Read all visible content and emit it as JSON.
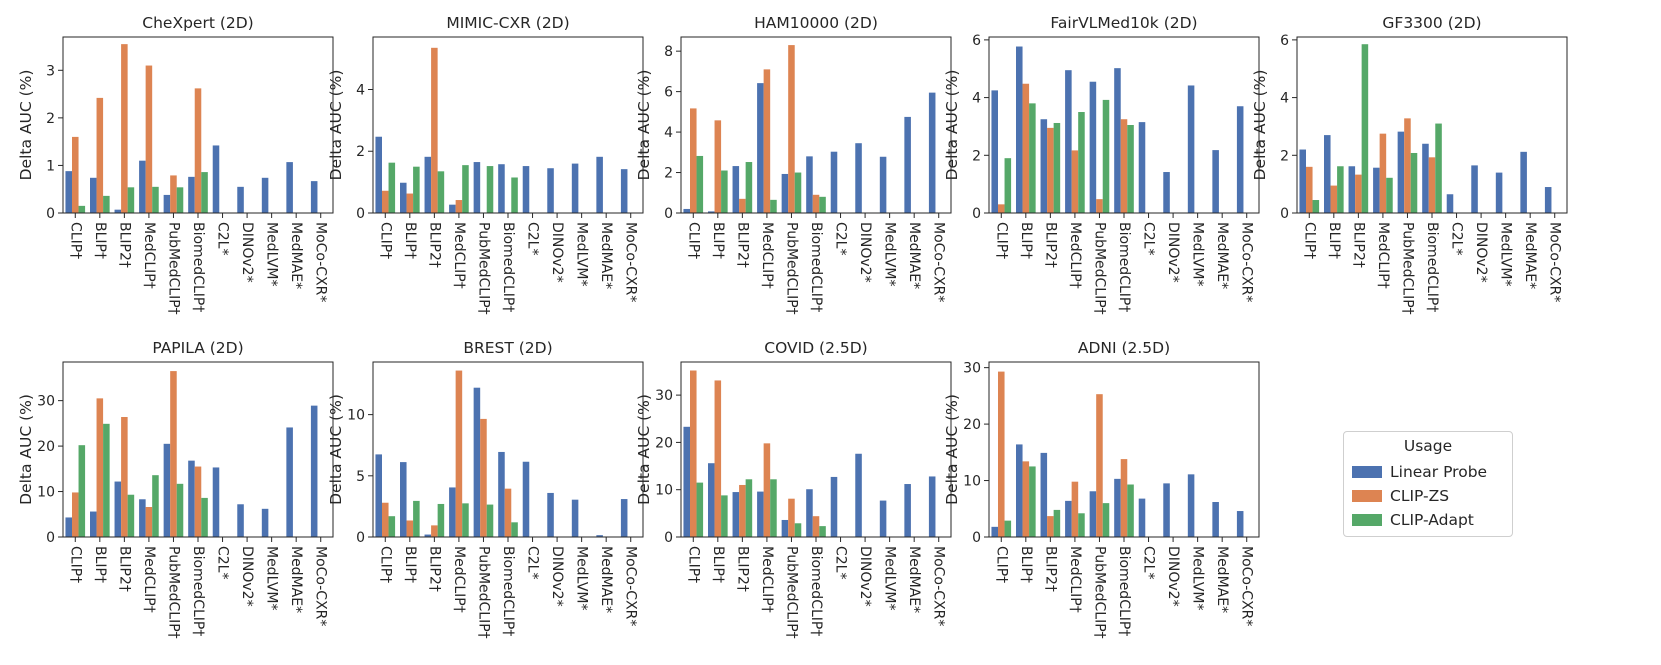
{
  "chart_data": {
    "type": "bar",
    "legend": {
      "title": "Usage",
      "position": "right",
      "series": [
        {
          "name": "Linear Probe",
          "color": "#4c72b0"
        },
        {
          "name": "CLIP-ZS",
          "color": "#dd8452"
        },
        {
          "name": "CLIP-Adapt",
          "color": "#55a868"
        }
      ]
    },
    "categories": [
      "CLIP†",
      "BLIP†",
      "BLIP2†",
      "MedCLIP†",
      "PubMedCLIP†",
      "BiomedCLIP†",
      "C2L*",
      "DINOv2*",
      "MedLVM*",
      "MedMAE*",
      "MoCo-CXR*"
    ],
    "ylabel": "Delta AUC (%)",
    "panels": [
      {
        "title": "CheXpert (2D)",
        "ylim": [
          0,
          3.7
        ],
        "yticks": [
          0,
          1,
          2,
          3
        ],
        "series": [
          {
            "name": "Linear Probe",
            "values": [
              0.88,
              0.74,
              0.07,
              1.1,
              0.38,
              0.76,
              1.42,
              0.55,
              0.74,
              1.07,
              0.67
            ]
          },
          {
            "name": "CLIP-ZS",
            "values": [
              1.6,
              2.42,
              3.55,
              3.1,
              0.79,
              2.62,
              null,
              null,
              null,
              null,
              null
            ]
          },
          {
            "name": "CLIP-Adapt",
            "values": [
              0.15,
              0.36,
              0.54,
              0.55,
              0.54,
              0.86,
              null,
              null,
              null,
              null,
              null
            ]
          }
        ]
      },
      {
        "title": "MIMIC-CXR (2D)",
        "ylim": [
          0,
          5.7
        ],
        "yticks": [
          0,
          2,
          4
        ],
        "series": [
          {
            "name": "Linear Probe",
            "values": [
              2.47,
              0.98,
              1.82,
              0.27,
              1.65,
              1.58,
              1.52,
              1.45,
              1.6,
              1.82,
              1.42
            ]
          },
          {
            "name": "CLIP-ZS",
            "values": [
              0.72,
              0.63,
              5.35,
              0.42,
              null,
              null,
              null,
              null,
              null,
              null,
              null
            ]
          },
          {
            "name": "CLIP-Adapt",
            "values": [
              1.63,
              1.5,
              1.35,
              1.55,
              1.52,
              1.15,
              null,
              null,
              null,
              null,
              null
            ]
          }
        ]
      },
      {
        "title": "HAM10000 (2D)",
        "ylim": [
          0,
          8.7
        ],
        "yticks": [
          0,
          2,
          4,
          6,
          8
        ],
        "series": [
          {
            "name": "Linear Probe",
            "values": [
              0.2,
              0.08,
              2.32,
              6.42,
              1.93,
              2.8,
              3.03,
              3.45,
              2.78,
              4.75,
              5.95
            ]
          },
          {
            "name": "CLIP-ZS",
            "values": [
              5.17,
              4.58,
              0.7,
              7.1,
              8.3,
              0.9,
              null,
              null,
              null,
              null,
              null
            ]
          },
          {
            "name": "CLIP-Adapt",
            "values": [
              2.82,
              2.1,
              2.52,
              0.65,
              2.0,
              0.8,
              null,
              null,
              null,
              null,
              null
            ]
          }
        ]
      },
      {
        "title": "FairVLMed10k (2D)",
        "ylim": [
          0,
          6.1
        ],
        "yticks": [
          0,
          2,
          4,
          6
        ],
        "series": [
          {
            "name": "Linear Probe",
            "values": [
              4.25,
              5.77,
              3.25,
              4.95,
              4.55,
              5.02,
              3.15,
              1.42,
              4.42,
              2.18,
              3.7
            ]
          },
          {
            "name": "CLIP-ZS",
            "values": [
              0.3,
              4.48,
              2.95,
              2.17,
              0.48,
              3.25,
              null,
              null,
              null,
              null,
              null
            ]
          },
          {
            "name": "CLIP-Adapt",
            "values": [
              1.9,
              3.8,
              3.12,
              3.5,
              3.92,
              3.05,
              null,
              null,
              null,
              null,
              null
            ]
          }
        ]
      },
      {
        "title": "GF3300 (2D)",
        "ylim": [
          0,
          6.1
        ],
        "yticks": [
          0,
          2,
          4,
          6
        ],
        "series": [
          {
            "name": "Linear Probe",
            "values": [
              2.2,
              2.7,
              1.62,
              1.57,
              2.82,
              2.4,
              0.65,
              1.65,
              1.4,
              2.12,
              0.9
            ]
          },
          {
            "name": "CLIP-ZS",
            "values": [
              1.6,
              0.95,
              1.33,
              2.75,
              3.28,
              1.93,
              null,
              null,
              null,
              null,
              null
            ]
          },
          {
            "name": "CLIP-Adapt",
            "values": [
              0.45,
              1.62,
              5.85,
              1.22,
              2.08,
              3.1,
              null,
              null,
              null,
              null,
              null
            ]
          }
        ]
      },
      {
        "title": "PAPILA (2D)",
        "ylim": [
          0,
          38.5
        ],
        "yticks": [
          0,
          10,
          20,
          30
        ],
        "series": [
          {
            "name": "Linear Probe",
            "values": [
              4.3,
              5.6,
              12.2,
              8.3,
              20.5,
              16.8,
              15.3,
              7.2,
              6.2,
              24.1,
              28.9
            ]
          },
          {
            "name": "CLIP-ZS",
            "values": [
              9.8,
              30.5,
              26.4,
              6.6,
              36.5,
              15.5,
              null,
              null,
              null,
              null,
              null
            ]
          },
          {
            "name": "CLIP-Adapt",
            "values": [
              20.2,
              24.9,
              9.3,
              13.6,
              11.7,
              8.6,
              null,
              null,
              null,
              null,
              null
            ]
          }
        ]
      },
      {
        "title": "BREST (2D)",
        "ylim": [
          0,
          14.3
        ],
        "yticks": [
          0,
          5,
          10
        ],
        "series": [
          {
            "name": "Linear Probe",
            "values": [
              6.75,
              6.12,
              0.2,
              4.05,
              12.2,
              6.95,
              6.15,
              3.6,
              3.05,
              0.15,
              3.1
            ]
          },
          {
            "name": "CLIP-ZS",
            "values": [
              2.8,
              1.35,
              0.95,
              13.6,
              9.65,
              3.95,
              null,
              null,
              null,
              null,
              null
            ]
          },
          {
            "name": "CLIP-Adapt",
            "values": [
              1.7,
              2.95,
              2.7,
              2.75,
              2.65,
              1.2,
              null,
              null,
              null,
              null,
              null
            ]
          }
        ]
      },
      {
        "title": "COVID (2.5D)",
        "ylim": [
          0,
          37
        ],
        "yticks": [
          0,
          10,
          20,
          30
        ],
        "series": [
          {
            "name": "Linear Probe",
            "values": [
              23.3,
              15.6,
              9.5,
              9.6,
              3.6,
              10.1,
              12.7,
              17.6,
              7.7,
              11.2,
              12.8
            ]
          },
          {
            "name": "CLIP-ZS",
            "values": [
              35.2,
              33.1,
              11.0,
              19.8,
              8.1,
              4.4,
              null,
              null,
              null,
              null,
              null
            ]
          },
          {
            "name": "CLIP-Adapt",
            "values": [
              11.5,
              8.8,
              12.2,
              12.2,
              2.9,
              2.3,
              null,
              null,
              null,
              null,
              null
            ]
          }
        ]
      },
      {
        "title": "ADNI (2.5D)",
        "ylim": [
          0,
          31
        ],
        "yticks": [
          0,
          10,
          20,
          30
        ],
        "series": [
          {
            "name": "Linear Probe",
            "values": [
              1.8,
              16.4,
              14.9,
              6.4,
              8.1,
              10.3,
              6.8,
              9.5,
              11.1,
              6.2,
              4.6
            ]
          },
          {
            "name": "CLIP-ZS",
            "values": [
              29.3,
              13.4,
              3.7,
              9.8,
              25.3,
              13.8,
              null,
              null,
              null,
              null,
              null
            ]
          },
          {
            "name": "CLIP-Adapt",
            "values": [
              2.9,
              12.5,
              4.8,
              4.2,
              6.0,
              9.3,
              null,
              null,
              null,
              null,
              null
            ]
          }
        ]
      }
    ]
  }
}
